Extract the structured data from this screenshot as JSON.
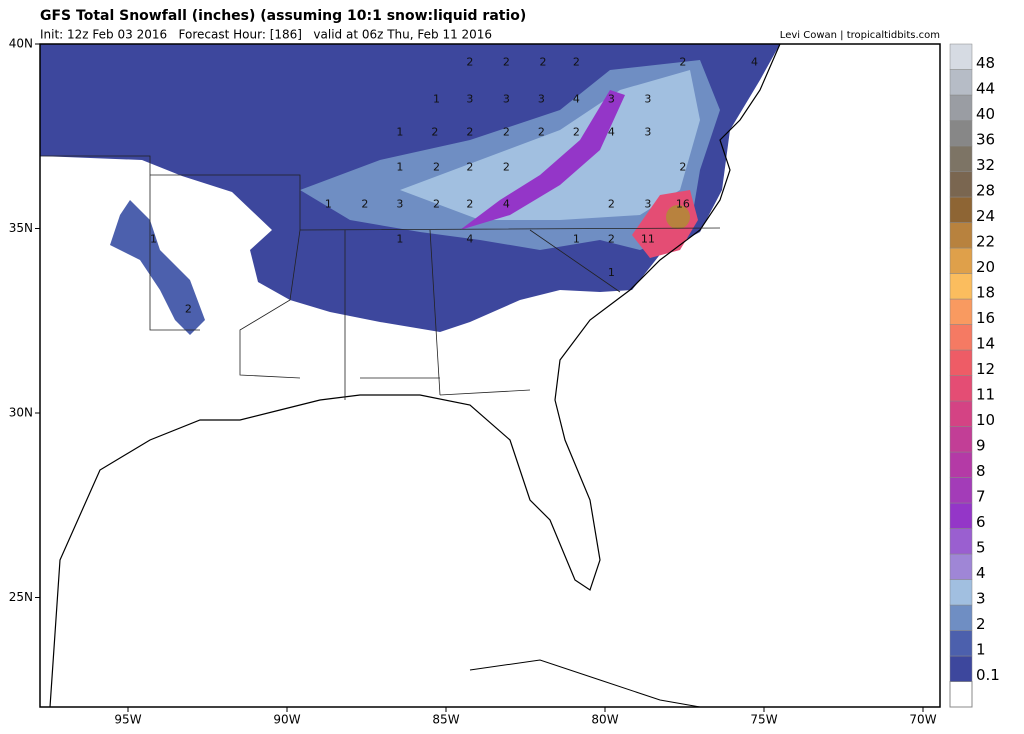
{
  "header": {
    "title": "GFS Total Snowfall (inches) (assuming 10:1 snow:liquid ratio)",
    "subtitle": "Init: 12z Feb 03 2016   Forecast Hour: [186]   valid at 06z Thu, Feb 11 2016",
    "credit": "Levi Cowan | tropicaltidbits.com"
  },
  "map": {
    "xticks": [
      {
        "value": -95,
        "label": "95W"
      },
      {
        "value": -90,
        "label": "90W"
      },
      {
        "value": -85,
        "label": "85W"
      },
      {
        "value": -80,
        "label": "80W"
      },
      {
        "value": -75,
        "label": "75W"
      },
      {
        "value": -70,
        "label": "70W"
      }
    ],
    "yticks": [
      {
        "value": 40,
        "label": "40N"
      },
      {
        "value": 35,
        "label": "35N"
      },
      {
        "value": 30,
        "label": "30N"
      },
      {
        "value": 25,
        "label": "25N"
      }
    ],
    "labels": [
      {
        "text": "2",
        "lon": -84.25,
        "lat": 39.5
      },
      {
        "text": "2",
        "lon": -83.1,
        "lat": 39.5
      },
      {
        "text": "2",
        "lon": -81.95,
        "lat": 39.5
      },
      {
        "text": "2",
        "lon": -80.9,
        "lat": 39.5
      },
      {
        "text": "2",
        "lon": -77.55,
        "lat": 39.5
      },
      {
        "text": "4",
        "lon": -75.3,
        "lat": 39.5
      },
      {
        "text": "1",
        "lon": -85.3,
        "lat": 38.5
      },
      {
        "text": "3",
        "lon": -84.25,
        "lat": 38.5
      },
      {
        "text": "3",
        "lon": -83.1,
        "lat": 38.5
      },
      {
        "text": "3",
        "lon": -82.0,
        "lat": 38.5
      },
      {
        "text": "4",
        "lon": -80.9,
        "lat": 38.5
      },
      {
        "text": "3",
        "lon": -79.8,
        "lat": 38.5
      },
      {
        "text": "3",
        "lon": -78.65,
        "lat": 38.5
      },
      {
        "text": "1",
        "lon": -86.45,
        "lat": 37.6
      },
      {
        "text": "2",
        "lon": -85.35,
        "lat": 37.6
      },
      {
        "text": "2",
        "lon": -84.25,
        "lat": 37.6
      },
      {
        "text": "2",
        "lon": -83.1,
        "lat": 37.6
      },
      {
        "text": "2",
        "lon": -82.0,
        "lat": 37.6
      },
      {
        "text": "2",
        "lon": -80.9,
        "lat": 37.6
      },
      {
        "text": "4",
        "lon": -79.8,
        "lat": 37.6
      },
      {
        "text": "3",
        "lon": -78.65,
        "lat": 37.6
      },
      {
        "text": "1",
        "lon": -86.45,
        "lat": 36.65
      },
      {
        "text": "2",
        "lon": -85.3,
        "lat": 36.65
      },
      {
        "text": "2",
        "lon": -84.25,
        "lat": 36.65
      },
      {
        "text": "2",
        "lon": -83.1,
        "lat": 36.65
      },
      {
        "text": "2",
        "lon": -77.55,
        "lat": 36.65
      },
      {
        "text": "1",
        "lon": -88.7,
        "lat": 35.65
      },
      {
        "text": "2",
        "lon": -87.55,
        "lat": 35.65
      },
      {
        "text": "3",
        "lon": -86.45,
        "lat": 35.65
      },
      {
        "text": "2",
        "lon": -85.3,
        "lat": 35.65
      },
      {
        "text": "2",
        "lon": -84.25,
        "lat": 35.65
      },
      {
        "text": "4",
        "lon": -83.1,
        "lat": 35.65
      },
      {
        "text": "2",
        "lon": -79.8,
        "lat": 35.65
      },
      {
        "text": "3",
        "lon": -78.65,
        "lat": 35.65
      },
      {
        "text": "16",
        "lon": -77.55,
        "lat": 35.65
      },
      {
        "text": "1",
        "lon": -94.2,
        "lat": 34.7
      },
      {
        "text": "1",
        "lon": -86.45,
        "lat": 34.7
      },
      {
        "text": "4",
        "lon": -84.25,
        "lat": 34.7
      },
      {
        "text": "1",
        "lon": -80.9,
        "lat": 34.7
      },
      {
        "text": "2",
        "lon": -79.8,
        "lat": 34.7
      },
      {
        "text": "11",
        "lon": -78.65,
        "lat": 34.7
      },
      {
        "text": "1",
        "lon": -79.8,
        "lat": 33.8
      },
      {
        "text": "2",
        "lon": -93.1,
        "lat": 32.8
      }
    ]
  },
  "colorbar": {
    "levels": [
      {
        "value": 0.1,
        "label": "0.1"
      },
      1,
      2,
      3,
      4,
      5,
      6,
      7,
      8,
      9,
      10,
      11,
      12,
      14,
      16,
      18,
      20,
      22,
      24,
      28,
      32,
      36,
      40,
      44,
      48
    ],
    "colors": [
      "#3d479d",
      "#4c60ad",
      "#6f8ec3",
      "#a1bfe0",
      "#9f86d6",
      "#9a5fd0",
      "#9436c8",
      "#a33cb8",
      "#b43aa6",
      "#c23e96",
      "#d44384",
      "#e44d74",
      "#ee5c66",
      "#f57a63",
      "#f99a60",
      "#fbbd5e",
      "#dfa04a",
      "#b8823e",
      "#8e6534",
      "#7a6650",
      "#7d7465",
      "#878787",
      "#9a9da3",
      "#b6bcc6",
      "#d6dbe3"
    ]
  }
}
